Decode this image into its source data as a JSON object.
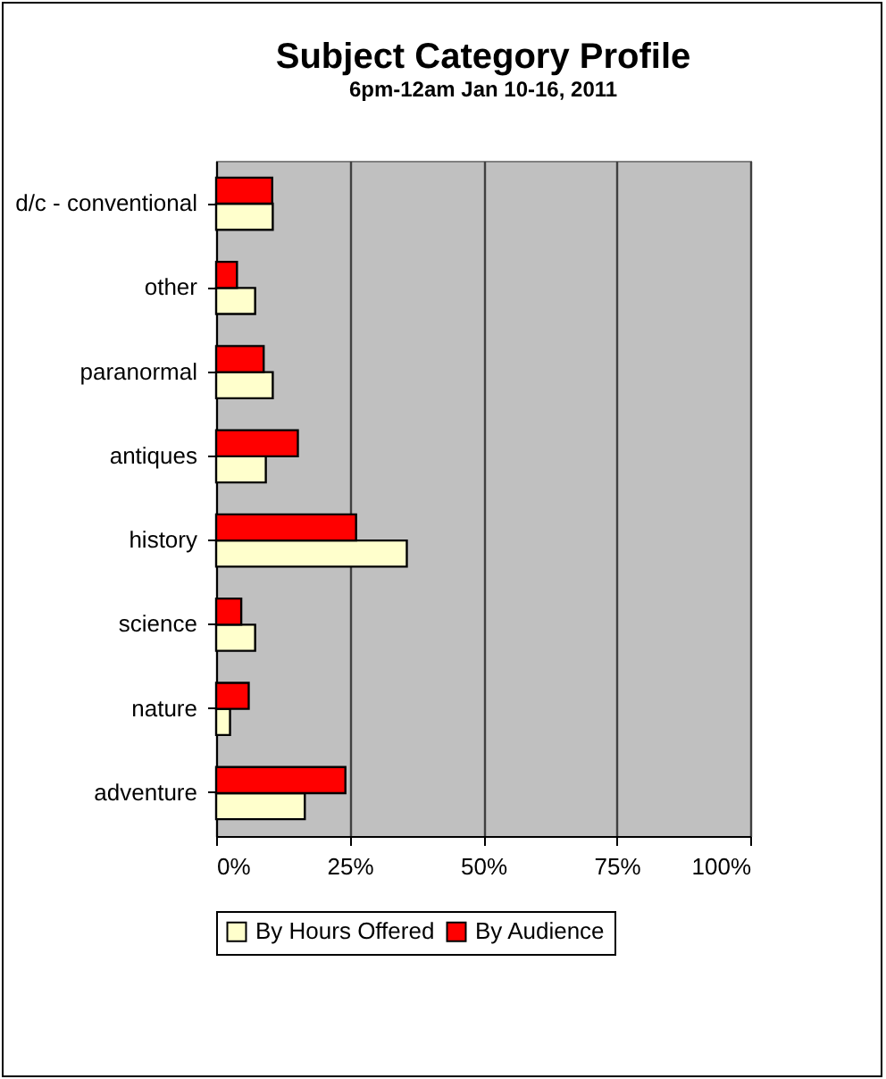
{
  "chart_data": {
    "type": "bar",
    "orientation": "horizontal",
    "title": "Subject Category Profile",
    "subtitle": "6pm-12am Jan 10-16, 2011",
    "categories": [
      "d/c - conventional",
      "other",
      "paranormal",
      "antiques",
      "history",
      "science",
      "nature",
      "adventure"
    ],
    "series": [
      {
        "name": "By Hours Offered",
        "color": "#ffffcc",
        "values": [
          10.6,
          7.3,
          10.6,
          9.3,
          35.7,
          7.3,
          2.6,
          16.6
        ]
      },
      {
        "name": "By Audience",
        "color": "#ff0000",
        "values": [
          10.5,
          3.9,
          8.9,
          15.3,
          26.2,
          4.7,
          6.1,
          24.2
        ]
      }
    ],
    "xlim": [
      0,
      100
    ],
    "xticks": [
      {
        "value": 0,
        "label": "0%"
      },
      {
        "value": 25,
        "label": "25%"
      },
      {
        "value": 50,
        "label": "50%"
      },
      {
        "value": 75,
        "label": "75%"
      },
      {
        "value": 100,
        "label": "100%"
      }
    ],
    "grid": "x",
    "legend": "bottom"
  }
}
